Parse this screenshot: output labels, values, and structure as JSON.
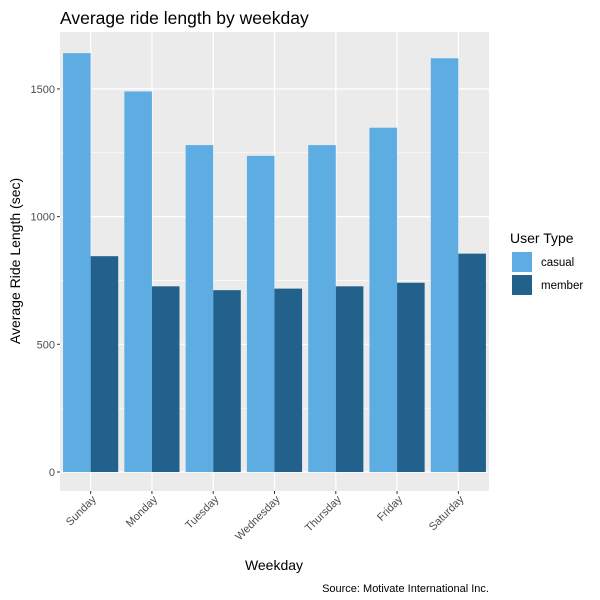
{
  "chart_data": {
    "type": "bar",
    "title": "Average ride length by weekday",
    "xlabel": "Weekday",
    "ylabel": "Average Ride Length (sec)",
    "caption": "Source: Motivate International Inc.",
    "categories": [
      "Sunday",
      "Monday",
      "Tuesday",
      "Wednesday",
      "Thursday",
      "Friday",
      "Saturday"
    ],
    "series": [
      {
        "name": "casual",
        "color": "#5dade2",
        "values": [
          1640,
          1490,
          1280,
          1238,
          1280,
          1348,
          1620
        ]
      },
      {
        "name": "member",
        "color": "#21618c",
        "values": [
          845,
          727,
          712,
          718,
          727,
          741,
          855
        ]
      }
    ],
    "ylim": [
      0,
      1700
    ],
    "yticks": [
      0,
      500,
      1000,
      1500
    ],
    "grid": true,
    "legend": {
      "title": "User Type",
      "position": "right"
    }
  }
}
